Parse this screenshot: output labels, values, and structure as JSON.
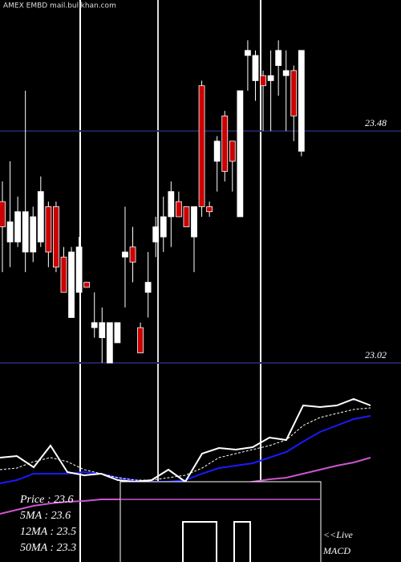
{
  "chart_data": [
    {
      "type": "candlestick",
      "title": "AMEX  EMBD mail.bullkhan.com",
      "ylim": [
        23.0,
        23.74
      ],
      "yticks": [
        23.48,
        23.02
      ],
      "grid": true,
      "grid_color": "#22225e",
      "up_color": "#ffffff",
      "down_color": "#cc0000",
      "open": [
        23.34,
        23.26,
        23.26,
        23.24,
        23.24,
        23.26,
        23.33,
        23.33,
        23.23,
        23.11,
        23.16,
        23.18,
        23.09,
        23.07,
        23.02,
        23.06,
        23.23,
        23.25,
        23.09,
        23.16,
        23.26,
        23.27,
        23.31,
        23.34,
        23.33,
        23.27,
        23.57,
        23.33,
        23.42,
        23.51,
        23.46,
        23.31,
        23.63,
        23.58,
        23.59,
        23.58,
        23.61,
        23.59,
        23.6,
        23.44
      ],
      "high": [
        23.38,
        23.42,
        23.35,
        23.56,
        23.33,
        23.39,
        23.34,
        23.34,
        23.25,
        23.25,
        23.27,
        23.18,
        23.16,
        23.13,
        23.1,
        23.1,
        23.33,
        23.29,
        23.1,
        23.24,
        23.31,
        23.35,
        23.38,
        23.36,
        23.33,
        23.33,
        23.58,
        23.34,
        23.47,
        23.52,
        23.46,
        23.56,
        23.66,
        23.64,
        23.6,
        23.64,
        23.66,
        23.64,
        23.61,
        23.64
      ],
      "low": [
        23.2,
        23.21,
        23.25,
        23.2,
        23.22,
        23.25,
        23.21,
        23.2,
        23.16,
        23.11,
        23.16,
        23.17,
        23.07,
        23.02,
        23.02,
        23.06,
        23.13,
        23.18,
        23.04,
        23.11,
        23.23,
        23.24,
        23.25,
        23.31,
        23.29,
        23.2,
        23.31,
        23.31,
        23.36,
        23.38,
        23.36,
        23.31,
        23.56,
        23.54,
        23.48,
        23.48,
        23.55,
        23.48,
        23.46,
        23.43
      ],
      "close": [
        23.29,
        23.3,
        23.32,
        23.32,
        23.31,
        23.36,
        23.24,
        23.21,
        23.16,
        23.24,
        23.25,
        23.17,
        23.1,
        23.1,
        23.1,
        23.1,
        23.24,
        23.22,
        23.04,
        23.18,
        23.29,
        23.31,
        23.36,
        23.31,
        23.29,
        23.33,
        23.33,
        23.32,
        23.46,
        23.4,
        23.42,
        23.56,
        23.64,
        23.63,
        23.57,
        23.59,
        23.64,
        23.6,
        23.51,
        23.64
      ]
    },
    {
      "type": "line",
      "ylim": [
        0,
        200
      ],
      "series": [
        {
          "name": "Price  : 23.6",
          "color": "#ffffff",
          "dash": false,
          "values": [
            80,
            82,
            68,
            95,
            62,
            58,
            60,
            52,
            50,
            52,
            65,
            50,
            85,
            92,
            90,
            93,
            105,
            102,
            145,
            143,
            145,
            153,
            145
          ]
        },
        {
          "name": "5MA    : 23.6",
          "color": "#ffffff",
          "dash": true,
          "values": [
            65,
            67,
            75,
            80,
            75,
            65,
            60,
            55,
            52,
            52,
            55,
            58,
            67,
            80,
            85,
            90,
            95,
            102,
            120,
            130,
            135,
            140,
            142
          ]
        },
        {
          "name": "12MA : 23.5",
          "color": "#1a1aff",
          "dash": false,
          "values": [
            48,
            52,
            60,
            60,
            60,
            62,
            60,
            55,
            52,
            50,
            50,
            52,
            60,
            67,
            70,
            73,
            80,
            87,
            100,
            112,
            120,
            128,
            132
          ]
        },
        {
          "name": "50MA : 23.3",
          "color": "#cc55cc",
          "dash": false,
          "values": [
            10,
            15,
            20,
            23,
            25,
            26,
            28,
            28,
            30,
            32,
            34,
            38,
            42,
            45,
            47,
            50,
            53,
            55,
            60,
            65,
            70,
            74,
            80
          ]
        }
      ],
      "annotations": [
        "<<Live",
        "MACD"
      ]
    }
  ]
}
